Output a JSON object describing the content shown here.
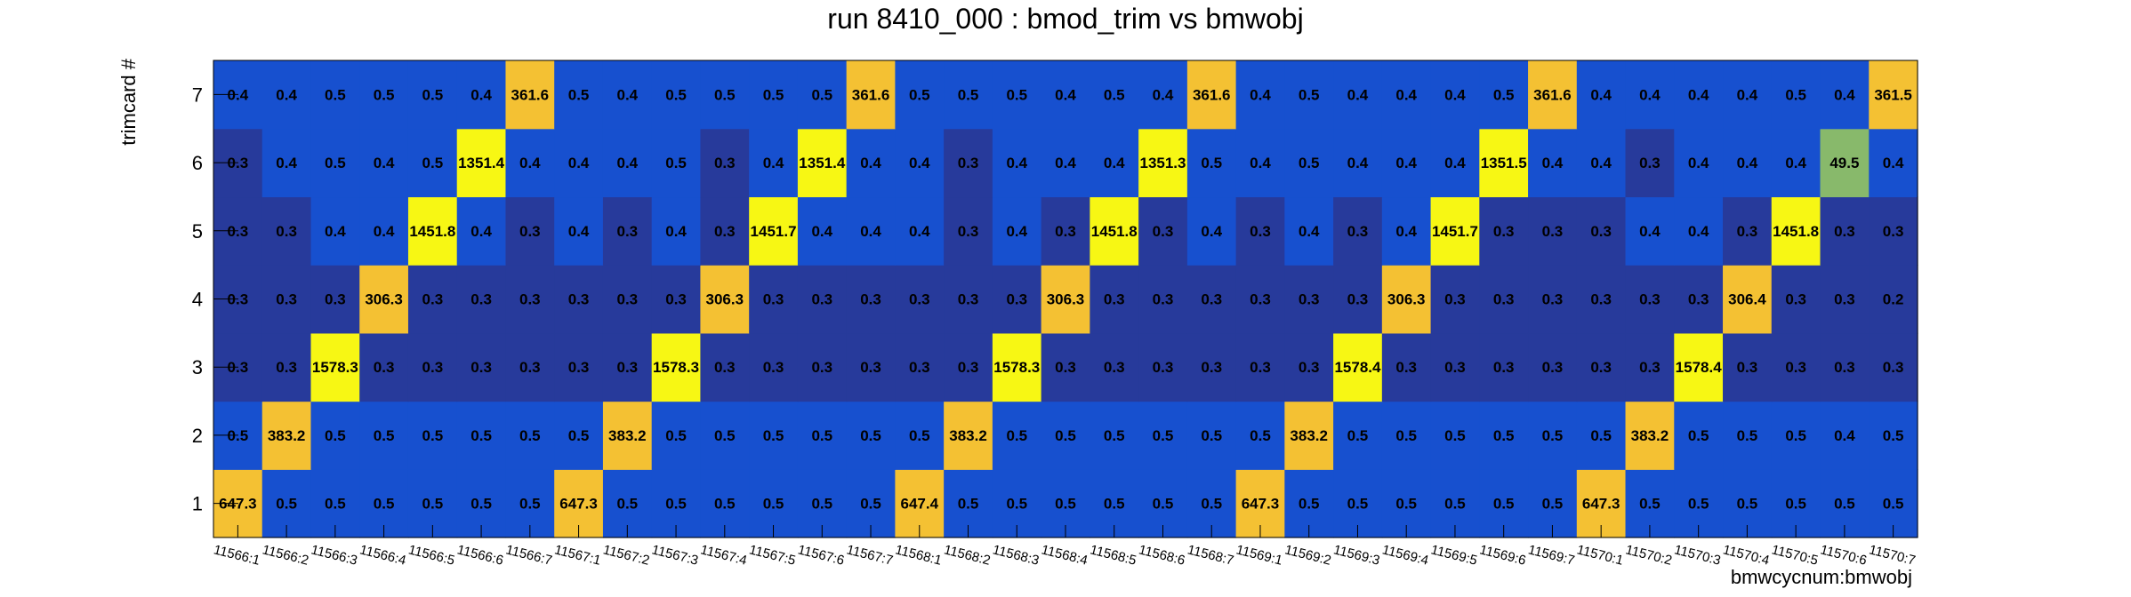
{
  "chart_data": {
    "type": "heatmap",
    "title": "run 8410_000 : bmod_trim vs bmwobj",
    "xlabel": "bmwcycnum:bmwobj",
    "ylabel": "trimcard #",
    "x_categories": [
      "11566:1",
      "11566:2",
      "11566:3",
      "11566:4",
      "11566:5",
      "11566:6",
      "11566:7",
      "11567:1",
      "11567:2",
      "11567:3",
      "11567:4",
      "11567:5",
      "11567:6",
      "11567:7",
      "11568:1",
      "11568:2",
      "11568:3",
      "11568:4",
      "11568:5",
      "11568:6",
      "11568:7",
      "11569:1",
      "11569:2",
      "11569:3",
      "11569:4",
      "11569:5",
      "11569:6",
      "11569:7",
      "11570:1",
      "11570:2",
      "11570:3",
      "11570:4",
      "11570:5",
      "11570:6",
      "11570:7"
    ],
    "y_categories": [
      "1",
      "2",
      "3",
      "4",
      "5",
      "6",
      "7"
    ],
    "values": [
      [
        "647.3",
        "0.5",
        "0.5",
        "0.5",
        "0.5",
        "0.5",
        "0.5",
        "647.3",
        "0.5",
        "0.5",
        "0.5",
        "0.5",
        "0.5",
        "0.5",
        "647.4",
        "0.5",
        "0.5",
        "0.5",
        "0.5",
        "0.5",
        "0.5",
        "647.3",
        "0.5",
        "0.5",
        "0.5",
        "0.5",
        "0.5",
        "0.5",
        "647.3",
        "0.5",
        "0.5",
        "0.5",
        "0.5",
        "0.5",
        "0.5"
      ],
      [
        "0.5",
        "383.2",
        "0.5",
        "0.5",
        "0.5",
        "0.5",
        "0.5",
        "0.5",
        "383.2",
        "0.5",
        "0.5",
        "0.5",
        "0.5",
        "0.5",
        "0.5",
        "383.2",
        "0.5",
        "0.5",
        "0.5",
        "0.5",
        "0.5",
        "0.5",
        "383.2",
        "0.5",
        "0.5",
        "0.5",
        "0.5",
        "0.5",
        "0.5",
        "383.2",
        "0.5",
        "0.5",
        "0.5",
        "0.4",
        "0.5"
      ],
      [
        "0.3",
        "0.3",
        "1578.3",
        "0.3",
        "0.3",
        "0.3",
        "0.3",
        "0.3",
        "0.3",
        "1578.3",
        "0.3",
        "0.3",
        "0.3",
        "0.3",
        "0.3",
        "0.3",
        "1578.3",
        "0.3",
        "0.3",
        "0.3",
        "0.3",
        "0.3",
        "0.3",
        "1578.4",
        "0.3",
        "0.3",
        "0.3",
        "0.3",
        "0.3",
        "0.3",
        "1578.4",
        "0.3",
        "0.3",
        "0.3",
        "0.3"
      ],
      [
        "0.3",
        "0.3",
        "0.3",
        "306.3",
        "0.3",
        "0.3",
        "0.3",
        "0.3",
        "0.3",
        "0.3",
        "306.3",
        "0.3",
        "0.3",
        "0.3",
        "0.3",
        "0.3",
        "0.3",
        "306.3",
        "0.3",
        "0.3",
        "0.3",
        "0.3",
        "0.3",
        "0.3",
        "306.3",
        "0.3",
        "0.3",
        "0.3",
        "0.3",
        "0.3",
        "0.3",
        "306.4",
        "0.3",
        "0.3",
        "0.2"
      ],
      [
        "0.3",
        "0.3",
        "0.4",
        "0.4",
        "1451.8",
        "0.4",
        "0.3",
        "0.4",
        "0.3",
        "0.4",
        "0.3",
        "1451.7",
        "0.4",
        "0.4",
        "0.4",
        "0.3",
        "0.4",
        "0.3",
        "1451.8",
        "0.3",
        "0.4",
        "0.3",
        "0.4",
        "0.3",
        "0.4",
        "1451.7",
        "0.3",
        "0.3",
        "0.3",
        "0.4",
        "0.4",
        "0.3",
        "1451.8",
        "0.3",
        "0.3"
      ],
      [
        "0.3",
        "0.4",
        "0.5",
        "0.4",
        "0.5",
        "1351.4",
        "0.4",
        "0.4",
        "0.4",
        "0.5",
        "0.3",
        "0.4",
        "1351.4",
        "0.4",
        "0.4",
        "0.3",
        "0.4",
        "0.4",
        "0.4",
        "1351.3",
        "0.5",
        "0.4",
        "0.5",
        "0.4",
        "0.4",
        "0.4",
        "1351.5",
        "0.4",
        "0.4",
        "0.3",
        "0.4",
        "0.4",
        "0.4",
        "49.5",
        "0.4"
      ],
      [
        "0.4",
        "0.4",
        "0.5",
        "0.5",
        "0.5",
        "0.4",
        "361.6",
        "0.5",
        "0.4",
        "0.5",
        "0.5",
        "0.5",
        "0.5",
        "361.6",
        "0.5",
        "0.5",
        "0.5",
        "0.4",
        "0.5",
        "0.4",
        "361.6",
        "0.4",
        "0.5",
        "0.4",
        "0.4",
        "0.4",
        "0.5",
        "361.6",
        "0.4",
        "0.4",
        "0.4",
        "0.4",
        "0.5",
        "0.4",
        "361.5"
      ]
    ],
    "grid": false,
    "legend": "none"
  }
}
